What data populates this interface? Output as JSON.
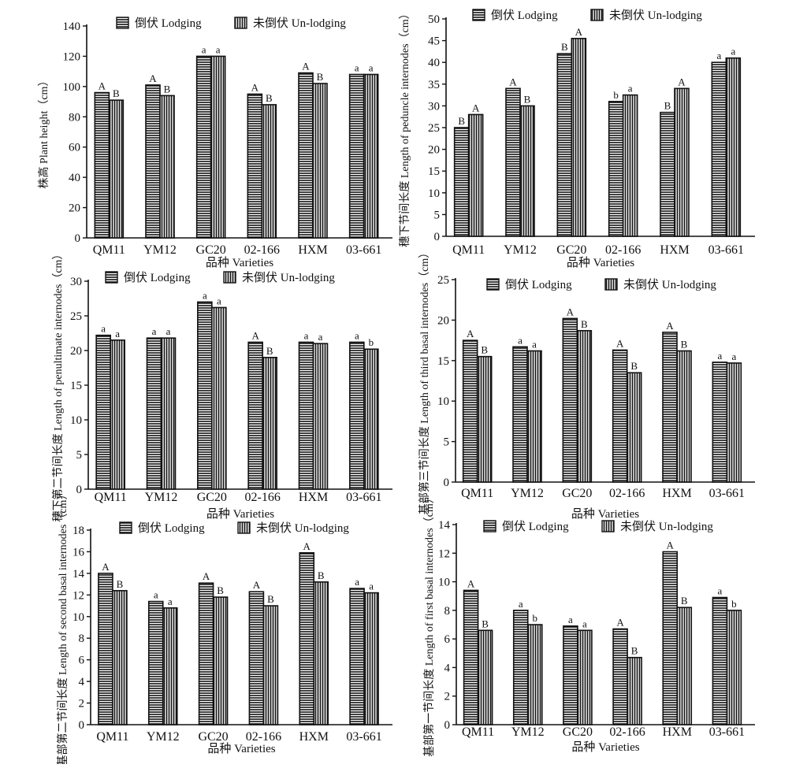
{
  "legend": {
    "lodging": "倒伏 Lodging",
    "unlodging": "未倒伏 Un-lodging"
  },
  "chart_data": [
    {
      "type": "bar",
      "ylabel": "株高 Plant height（cm）",
      "xlabel": "品种 Varieties",
      "categories": [
        "QM11",
        "YM12",
        "GC20",
        "02-166",
        "HXM",
        "03-661"
      ],
      "ylim": [
        0,
        140
      ],
      "yticks": [
        0,
        20,
        40,
        60,
        80,
        100,
        120,
        140
      ],
      "series": [
        {
          "name": "倒伏 Lodging",
          "values": [
            96,
            101,
            120,
            95,
            109,
            108
          ],
          "labels": [
            "A",
            "A",
            "a",
            "A",
            "A",
            "a"
          ]
        },
        {
          "name": "未倒伏 Un-lodging",
          "values": [
            91,
            94,
            120,
            88,
            102,
            108
          ],
          "labels": [
            "B",
            "B",
            "a",
            "B",
            "B",
            "a"
          ]
        }
      ],
      "legend": "top",
      "grid": false
    },
    {
      "type": "bar",
      "ylabel": "穗下节间长度 Length of peduncle internodes（cm）",
      "xlabel": "品种 Varieties",
      "categories": [
        "QM11",
        "YM12",
        "GC20",
        "02-166",
        "HXM",
        "03-661"
      ],
      "ylim": [
        0,
        50
      ],
      "yticks": [
        0,
        5,
        10,
        15,
        20,
        25,
        30,
        35,
        40,
        45,
        50
      ],
      "series": [
        {
          "name": "倒伏 Lodging",
          "values": [
            25,
            34,
            42,
            31,
            28.5,
            40
          ],
          "labels": [
            "B",
            "A",
            "B",
            "b",
            "B",
            "a"
          ]
        },
        {
          "name": "未倒伏 Un-lodging",
          "values": [
            28,
            30,
            45.5,
            32.5,
            34,
            41
          ],
          "labels": [
            "A",
            "B",
            "A",
            "a",
            "A",
            "a"
          ]
        }
      ],
      "legend": "top",
      "grid": false
    },
    {
      "type": "bar",
      "ylabel": "穗下第二节间长度 Length of penultimate internodes（cm）",
      "xlabel": "品种 Varieties",
      "categories": [
        "QM11",
        "YM12",
        "GC20",
        "02-166",
        "HXM",
        "03-661"
      ],
      "ylim": [
        0,
        30
      ],
      "yticks": [
        0,
        5,
        10,
        15,
        20,
        25,
        30
      ],
      "series": [
        {
          "name": "倒伏 Lodging",
          "values": [
            22.2,
            21.8,
            27,
            21.2,
            21.2,
            21.2
          ],
          "labels": [
            "a",
            "a",
            "a",
            "A",
            "a",
            "a"
          ]
        },
        {
          "name": "未倒伏 Un-lodging",
          "values": [
            21.5,
            21.8,
            26.2,
            19,
            21,
            20.2
          ],
          "labels": [
            "a",
            "a",
            "a",
            "B",
            "a",
            "b"
          ]
        }
      ],
      "legend": "top",
      "grid": false
    },
    {
      "type": "bar",
      "ylabel": "基部第三节间长度 Length of third basal internodes（cm）",
      "xlabel": "品种 Varieties",
      "categories": [
        "QM11",
        "YM12",
        "GC20",
        "02-166",
        "HXM",
        "03-661"
      ],
      "ylim": [
        0,
        25
      ],
      "yticks": [
        0,
        5,
        10,
        15,
        20,
        25
      ],
      "series": [
        {
          "name": "倒伏 Lodging",
          "values": [
            17.5,
            16.7,
            20.2,
            16.3,
            18.5,
            14.8
          ],
          "labels": [
            "A",
            "a",
            "A",
            "A",
            "A",
            "a"
          ]
        },
        {
          "name": "未倒伏 Un-lodging",
          "values": [
            15.5,
            16.2,
            18.7,
            13.5,
            16.2,
            14.7
          ],
          "labels": [
            "B",
            "a",
            "B",
            "B",
            "B",
            "a"
          ]
        }
      ],
      "legend": "top",
      "grid": false
    },
    {
      "type": "bar",
      "ylabel": "基部第二节间长度 Length of second basal internodes（cm）",
      "xlabel": "品种 Varieties",
      "categories": [
        "QM11",
        "YM12",
        "GC20",
        "02-166",
        "HXM",
        "03-661"
      ],
      "ylim": [
        0,
        18
      ],
      "yticks": [
        0,
        2,
        4,
        6,
        8,
        10,
        12,
        14,
        16,
        18
      ],
      "series": [
        {
          "name": "倒伏 Lodging",
          "values": [
            14,
            11.4,
            13.1,
            12.3,
            15.9,
            12.6
          ],
          "labels": [
            "A",
            "a",
            "A",
            "A",
            "A",
            "a"
          ]
        },
        {
          "name": "未倒伏 Un-lodging",
          "values": [
            12.4,
            10.8,
            11.8,
            11,
            13.2,
            12.2
          ],
          "labels": [
            "B",
            "a",
            "B",
            "B",
            "B",
            "a"
          ]
        }
      ],
      "legend": "top",
      "grid": false
    },
    {
      "type": "bar",
      "ylabel": "基部第一节间长度 Length of first basal internodes（cm）",
      "xlabel": "品种 Varieties",
      "categories": [
        "QM11",
        "YM12",
        "GC20",
        "02-166",
        "HXM",
        "03-661"
      ],
      "ylim": [
        0,
        14
      ],
      "yticks": [
        0,
        2,
        4,
        6,
        8,
        10,
        12,
        14
      ],
      "series": [
        {
          "name": "倒伏 Lodging",
          "values": [
            9.4,
            8,
            6.9,
            6.7,
            12.1,
            8.9
          ],
          "labels": [
            "A",
            "a",
            "a",
            "A",
            "A",
            "a"
          ]
        },
        {
          "name": "未倒伏 Un-lodging",
          "values": [
            6.6,
            7,
            6.6,
            4.7,
            8.2,
            8
          ],
          "labels": [
            "B",
            "b",
            "a",
            "B",
            "B",
            "b"
          ]
        }
      ],
      "legend": "top",
      "grid": false
    }
  ]
}
